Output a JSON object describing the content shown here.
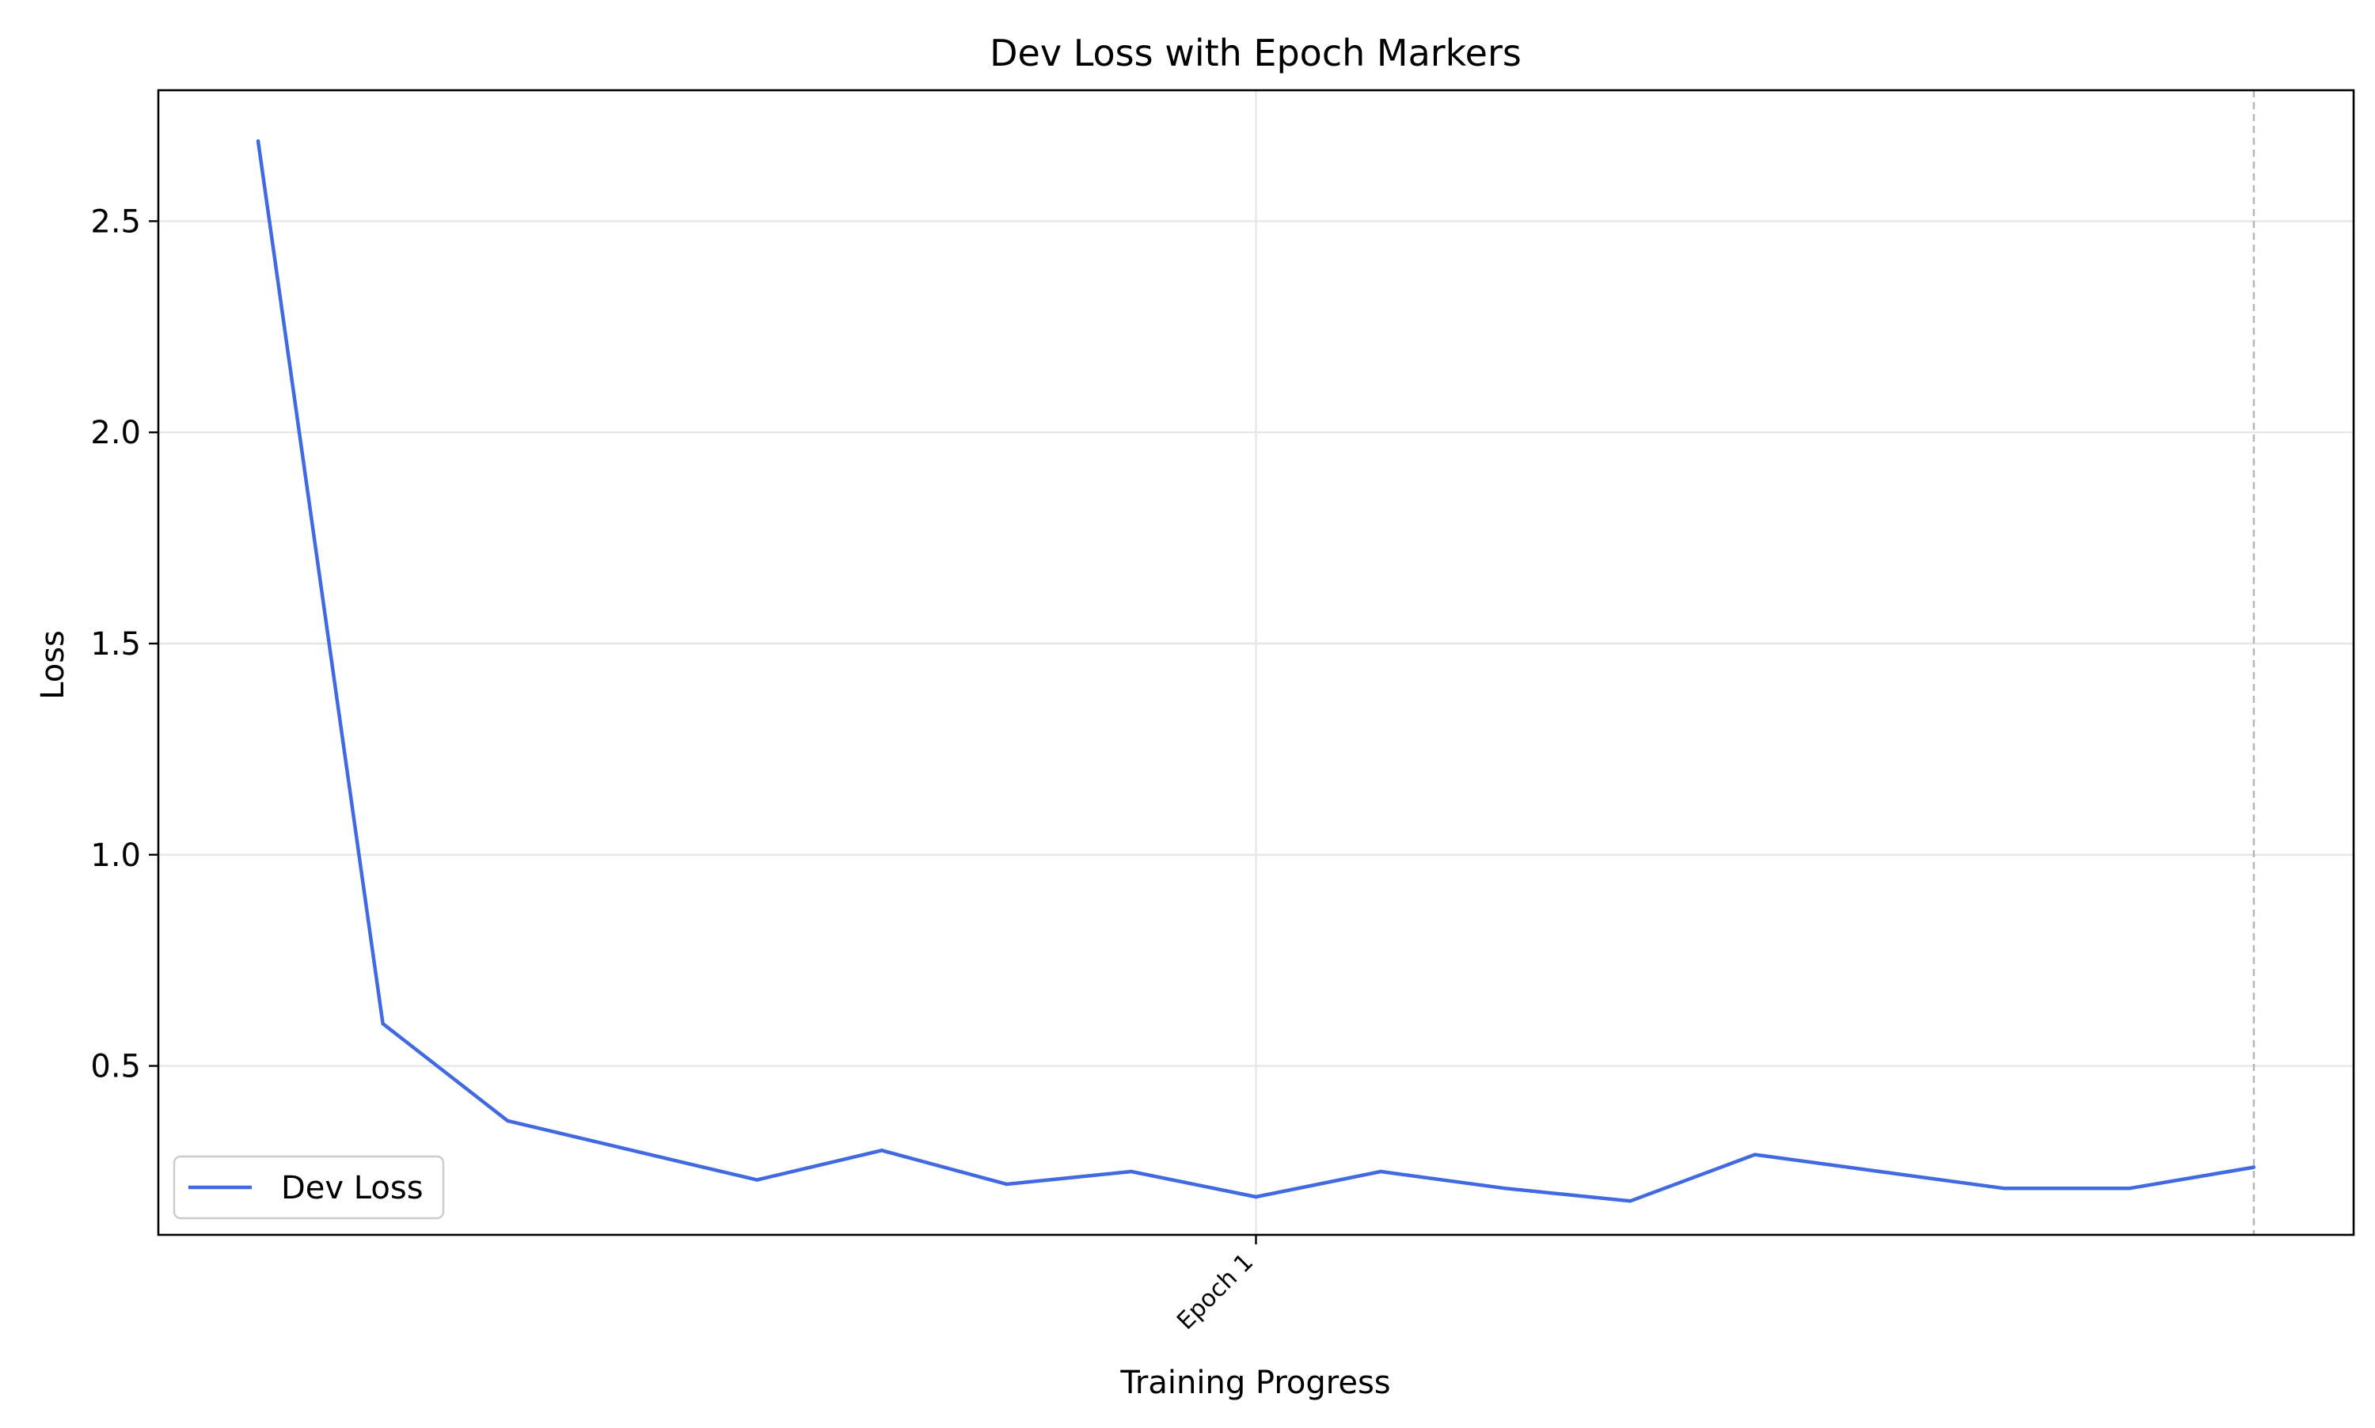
{
  "chart_data": {
    "type": "line",
    "title": "Dev Loss with Epoch Markers",
    "xlabel": "Training Progress",
    "ylabel": "Loss",
    "ylim": [
      0.1,
      2.81
    ],
    "xlim": [
      -0.8,
      16.8
    ],
    "yticks": [
      0.5,
      1.0,
      1.5,
      2.0,
      2.5
    ],
    "ytick_labels": [
      "0.5",
      "1.0",
      "1.5",
      "2.0",
      "2.5"
    ],
    "x_tick_markers": [
      {
        "x": 8,
        "label": "Epoch 1"
      }
    ],
    "epoch_lines": [
      {
        "x": 8,
        "style": "solid"
      },
      {
        "x": 16,
        "style": "dashed"
      }
    ],
    "grid": "y-major",
    "legend_position": "lower-left",
    "series": [
      {
        "name": "Dev Loss",
        "color": "#4169e1",
        "x": [
          0,
          1,
          2,
          3,
          4,
          5,
          6,
          7,
          8,
          9,
          10,
          11,
          12,
          13,
          14,
          15,
          16
        ],
        "values": [
          2.69,
          0.6,
          0.37,
          0.3,
          0.23,
          0.3,
          0.22,
          0.25,
          0.19,
          0.25,
          0.21,
          0.18,
          0.29,
          0.25,
          0.21,
          0.21,
          0.26
        ]
      }
    ]
  }
}
